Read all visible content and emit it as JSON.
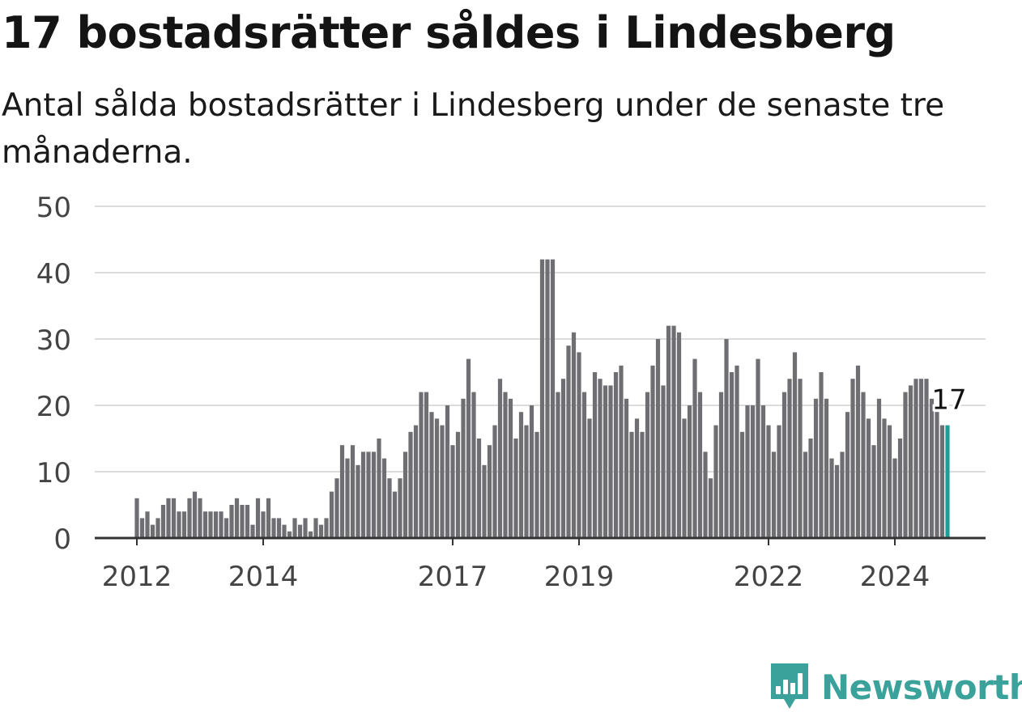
{
  "title": "17 bostadsrätter såldes i Lindesberg",
  "subtitle": "Antal sålda bostadsrätter i Lindesberg under de senaste tre månaderna.",
  "brand": {
    "name": "Newsworthy",
    "color": "#3aa19b",
    "icon": "newsworthy-logo-icon"
  },
  "chart_data": {
    "type": "bar",
    "y_ticks": [
      0,
      10,
      20,
      30,
      40,
      50
    ],
    "ylim": [
      0,
      50
    ],
    "x_ticks": [
      "2012",
      "2014",
      "2017",
      "2019",
      "2022",
      "2024"
    ],
    "x_tick_months": [
      0,
      24,
      60,
      84,
      120,
      144
    ],
    "grid": true,
    "bar_color": "#6e6e73",
    "highlight_color": "#1f9e99",
    "highlight_label": "17",
    "months_from": "2012-01",
    "values": [
      6,
      3,
      4,
      2,
      3,
      5,
      6,
      6,
      4,
      4,
      6,
      7,
      6,
      4,
      4,
      4,
      4,
      3,
      5,
      6,
      5,
      5,
      2,
      6,
      4,
      6,
      3,
      3,
      2,
      1,
      3,
      2,
      3,
      1,
      3,
      2,
      3,
      7,
      9,
      14,
      12,
      14,
      11,
      13,
      13,
      13,
      15,
      12,
      9,
      7,
      9,
      13,
      16,
      17,
      22,
      22,
      19,
      18,
      17,
      20,
      14,
      16,
      21,
      27,
      22,
      15,
      11,
      14,
      17,
      24,
      22,
      21,
      15,
      19,
      17,
      20,
      16,
      42,
      42,
      42,
      22,
      24,
      29,
      31,
      28,
      22,
      18,
      25,
      24,
      23,
      23,
      25,
      26,
      21,
      16,
      18,
      16,
      22,
      26,
      30,
      23,
      32,
      32,
      31,
      18,
      20,
      27,
      22,
      13,
      9,
      17,
      22,
      30,
      25,
      26,
      16,
      20,
      20,
      27,
      20,
      17,
      13,
      17,
      22,
      24,
      28,
      24,
      13,
      15,
      21,
      25,
      21,
      12,
      11,
      13,
      19,
      24,
      26,
      22,
      18,
      14,
      21,
      18,
      17,
      12,
      15,
      22,
      23,
      24,
      24,
      24,
      21,
      19,
      17,
      17
    ]
  }
}
